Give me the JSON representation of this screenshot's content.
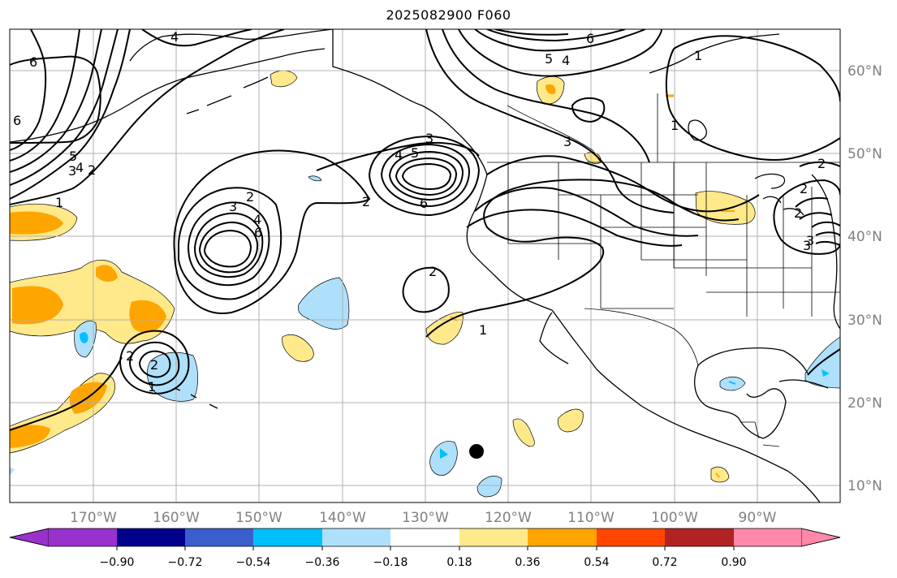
{
  "title": "2025082900 F060",
  "map": {
    "lon_labels": [
      "170°W",
      "160°W",
      "150°W",
      "140°W",
      "130°W",
      "120°W",
      "110°W",
      "100°W",
      "90°W"
    ],
    "lat_labels": [
      "60°N",
      "50°N",
      "40°N",
      "30°N",
      "20°N",
      "10°N"
    ],
    "grid_color": "#b0b0b0",
    "label_color": "#808080",
    "contour_labels": [
      "4",
      "6",
      "6",
      "5",
      "4",
      "1",
      "6",
      "5",
      "3",
      "2",
      "1",
      "4",
      "3",
      "2",
      "1",
      "4",
      "5",
      "3",
      "2",
      "6",
      "2",
      "3",
      "4",
      "6",
      "2",
      "1",
      "2",
      "1",
      "2",
      "3",
      "2",
      "2",
      "3"
    ],
    "point_marker": "black-dot"
  },
  "colorbar": {
    "tick_labels": [
      "−0.90",
      "−0.72",
      "−0.54",
      "−0.36",
      "−0.18",
      "0.18",
      "0.36",
      "0.54",
      "0.72",
      "0.90"
    ],
    "colors": [
      "#9932cc",
      "#00008b",
      "#3a5fcd",
      "#00bfff",
      "#aee0fc",
      "#ffffff",
      "#ffe98a",
      "#ffa500",
      "#ff4500",
      "#b22222",
      "#ff88aa"
    ]
  }
}
